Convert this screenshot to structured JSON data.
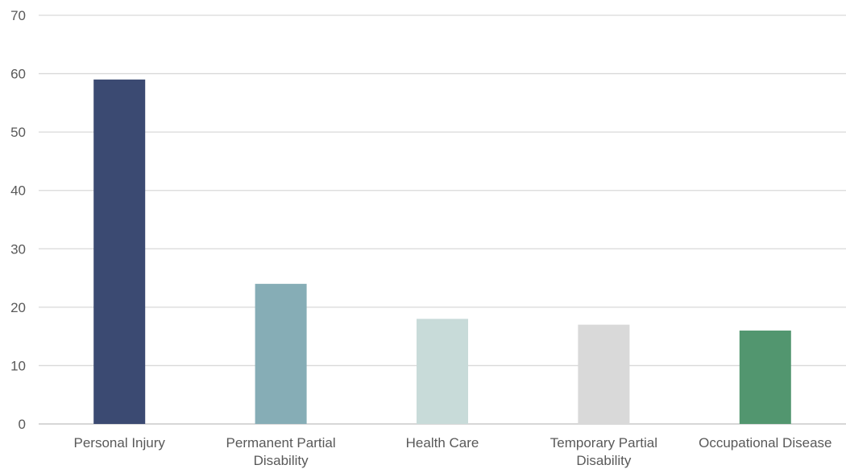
{
  "chart_data": {
    "type": "bar",
    "categories": [
      [
        "Personal Injury"
      ],
      [
        "Permanent Partial",
        "Disability"
      ],
      [
        "Health Care"
      ],
      [
        "Temporary Partial",
        "Disability"
      ],
      [
        "Occupational Disease"
      ]
    ],
    "values": [
      59,
      24,
      18,
      17,
      16
    ],
    "colors": [
      "#3b4a72",
      "#86adb6",
      "#c8dbd9",
      "#d9d9d9",
      "#52966f"
    ],
    "ylim": [
      0,
      70
    ],
    "yticks": [
      0,
      10,
      20,
      30,
      40,
      50,
      60,
      70
    ],
    "grid": true,
    "legend": "none",
    "title": "",
    "xlabel": "",
    "ylabel": ""
  }
}
